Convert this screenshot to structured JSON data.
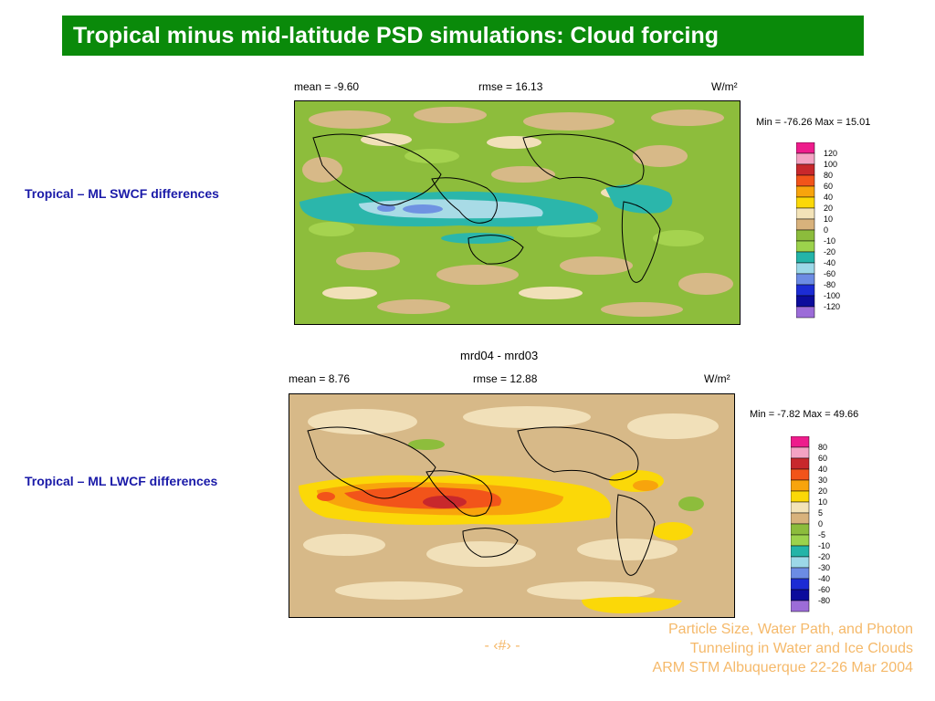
{
  "slide": {
    "title": "Tropical minus mid-latitude PSD simulations: Cloud forcing",
    "slide_number": "- ‹#› -",
    "footer": [
      "Particle Size, Water Path, and Photon",
      "Tunneling in Water and Ice Clouds",
      "ARM STM Albuquerque 22-26 Mar 2004"
    ]
  },
  "colors": {
    "title_bg": "#0a8a0a",
    "label_blue": "#1a1aa8",
    "footer_orange": "#f5b96a"
  },
  "panels": [
    {
      "side_label": "Tropical – ML SWCF differences",
      "map_title": "",
      "mean": "mean =  -9.60",
      "rmse": "rmse =  16.13",
      "units": "W/m²",
      "minmax": "Min = -76.26 Max =  15.01",
      "legend_labels": [
        "120",
        "100",
        "80",
        "60",
        "40",
        "20",
        "10",
        "0",
        "-10",
        "-20",
        "-40",
        "-60",
        "-80",
        "-100",
        "-120"
      ],
      "legend_colors": [
        "#ee1c8c",
        "#f4a3c3",
        "#c8282c",
        "#f2541a",
        "#f8a40c",
        "#fbd808",
        "#f3e3b8",
        "#d8b27c",
        "#8cbc3c",
        "#9cd24c",
        "#24b4a8",
        "#9cd8e8",
        "#6c8ce4",
        "#1c2cd4",
        "#0c0c9c",
        "#9c6cd8"
      ],
      "map_colors": {
        "ocean": "#d7b988",
        "land_fill": "#f1e0b9",
        "dominant": "#8dbd3c",
        "light": "#a5d34f",
        "teal": "#2bb6ab",
        "pale": "#a8dbe6",
        "blue": "#6f92e2"
      }
    },
    {
      "side_label": "Tropical – ML LWCF differences",
      "map_title": "mrd04 - mrd03",
      "mean": "mean =  8.76",
      "rmse": "rmse =  12.88",
      "units": "W/m²",
      "minmax": "Min =  -7.82 Max =  49.66",
      "legend_labels": [
        "80",
        "60",
        "40",
        "30",
        "20",
        "10",
        "5",
        "0",
        "-5",
        "-10",
        "-20",
        "-30",
        "-40",
        "-60",
        "-80"
      ],
      "legend_colors": [
        "#ee1c8c",
        "#f4a3c3",
        "#c8282c",
        "#f2541a",
        "#f8a40c",
        "#fbd808",
        "#f3e3b8",
        "#d8b27c",
        "#8cbc3c",
        "#9cd24c",
        "#24b4a8",
        "#9cd8e8",
        "#6c8ce4",
        "#1c2cd4",
        "#0c0c9c",
        "#9c6cd8"
      ],
      "map_colors": {
        "ocean": "#d7b988",
        "land_fill": "#f1e0b9",
        "yellow": "#fbd808",
        "orange": "#f8a40c",
        "red": "#f2541a",
        "dark_red": "#c8282c",
        "green": "#8dbd3c"
      }
    }
  ]
}
